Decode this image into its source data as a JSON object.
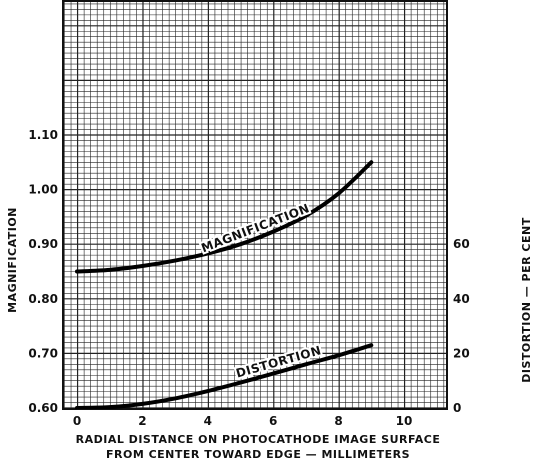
{
  "chart_data": {
    "type": "line",
    "xlabel_line1": "RADIAL DISTANCE ON PHOTOCATHODE IMAGE SURFACE",
    "xlabel_line2": "FROM CENTER TOWARD EDGE — MILLIMETERS",
    "ylabel_left": "MAGNIFICATION",
    "ylabel_right": "DISTORTION — PER CENT",
    "xlim": [
      -1,
      12
    ],
    "ylim_left": [
      0.6,
      1.2
    ],
    "ylim_right": [
      0,
      120
    ],
    "x_ticks": [
      "0",
      "2",
      "4",
      "6",
      "8",
      "10"
    ],
    "x_tick_values": [
      0,
      2,
      4,
      6,
      8,
      10
    ],
    "y_ticks_left": [
      "0.60",
      "0.70",
      "0.80",
      "0.90",
      "1.00",
      "1.10"
    ],
    "y_tick_values_left": [
      0.6,
      0.7,
      0.8,
      0.9,
      1.0,
      1.1
    ],
    "y_ticks_right": [
      "0",
      "20",
      "40",
      "60"
    ],
    "y_tick_values_right": [
      0,
      20,
      40,
      60
    ],
    "grid": true,
    "series": [
      {
        "name": "MAGNIFICATION",
        "axis": "left",
        "x": [
          0,
          1,
          2,
          3,
          4,
          5,
          6,
          7,
          8,
          9
        ],
        "values": [
          0.85,
          0.853,
          0.86,
          0.87,
          0.883,
          0.9,
          0.923,
          0.952,
          0.993,
          1.05
        ]
      },
      {
        "name": "DISTORTION",
        "axis": "right",
        "x": [
          0,
          1,
          2,
          3,
          4,
          5,
          6,
          7,
          8,
          9
        ],
        "values": [
          0,
          0.3,
          1.5,
          3.5,
          6.2,
          9.3,
          12.6,
          16.0,
          19.3,
          23.0
        ]
      }
    ]
  }
}
